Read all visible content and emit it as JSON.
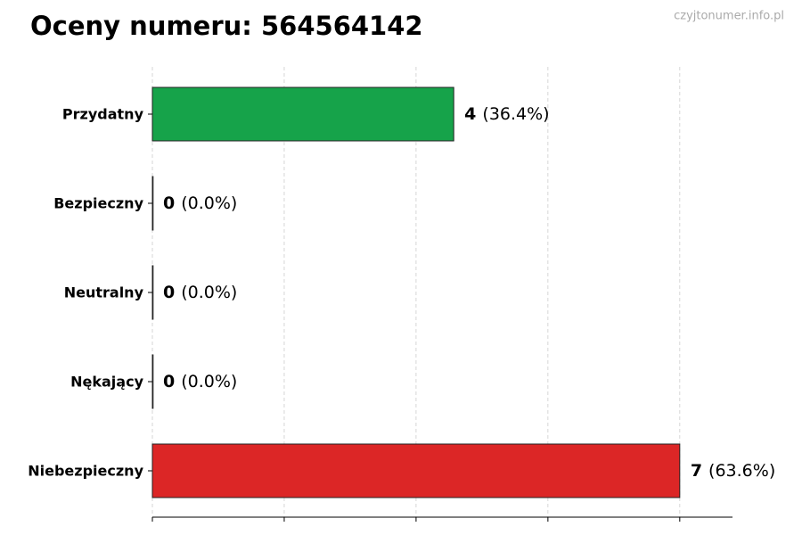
{
  "chart_data": {
    "type": "barh",
    "title": "Oceny numeru: 564564142",
    "watermark": "czyjtonumer.info.pl",
    "categories": [
      "Przydatny",
      "Bezpieczny",
      "Neutralny",
      "Nękający",
      "Niebezpieczny"
    ],
    "values": [
      4,
      0,
      0,
      0,
      7
    ],
    "percent_labels": [
      "(36.4%)",
      "(0.0%)",
      "(0.0%)",
      "(0.0%)",
      "(63.6%)"
    ],
    "colors": [
      "#16a34a",
      "#6b7280",
      "#9ca3af",
      "#ea580c",
      "#dc2626"
    ],
    "xlim": [
      0,
      7.7
    ],
    "xticks": [
      0,
      1.75,
      3.5,
      5.25,
      7
    ],
    "grid": true
  }
}
